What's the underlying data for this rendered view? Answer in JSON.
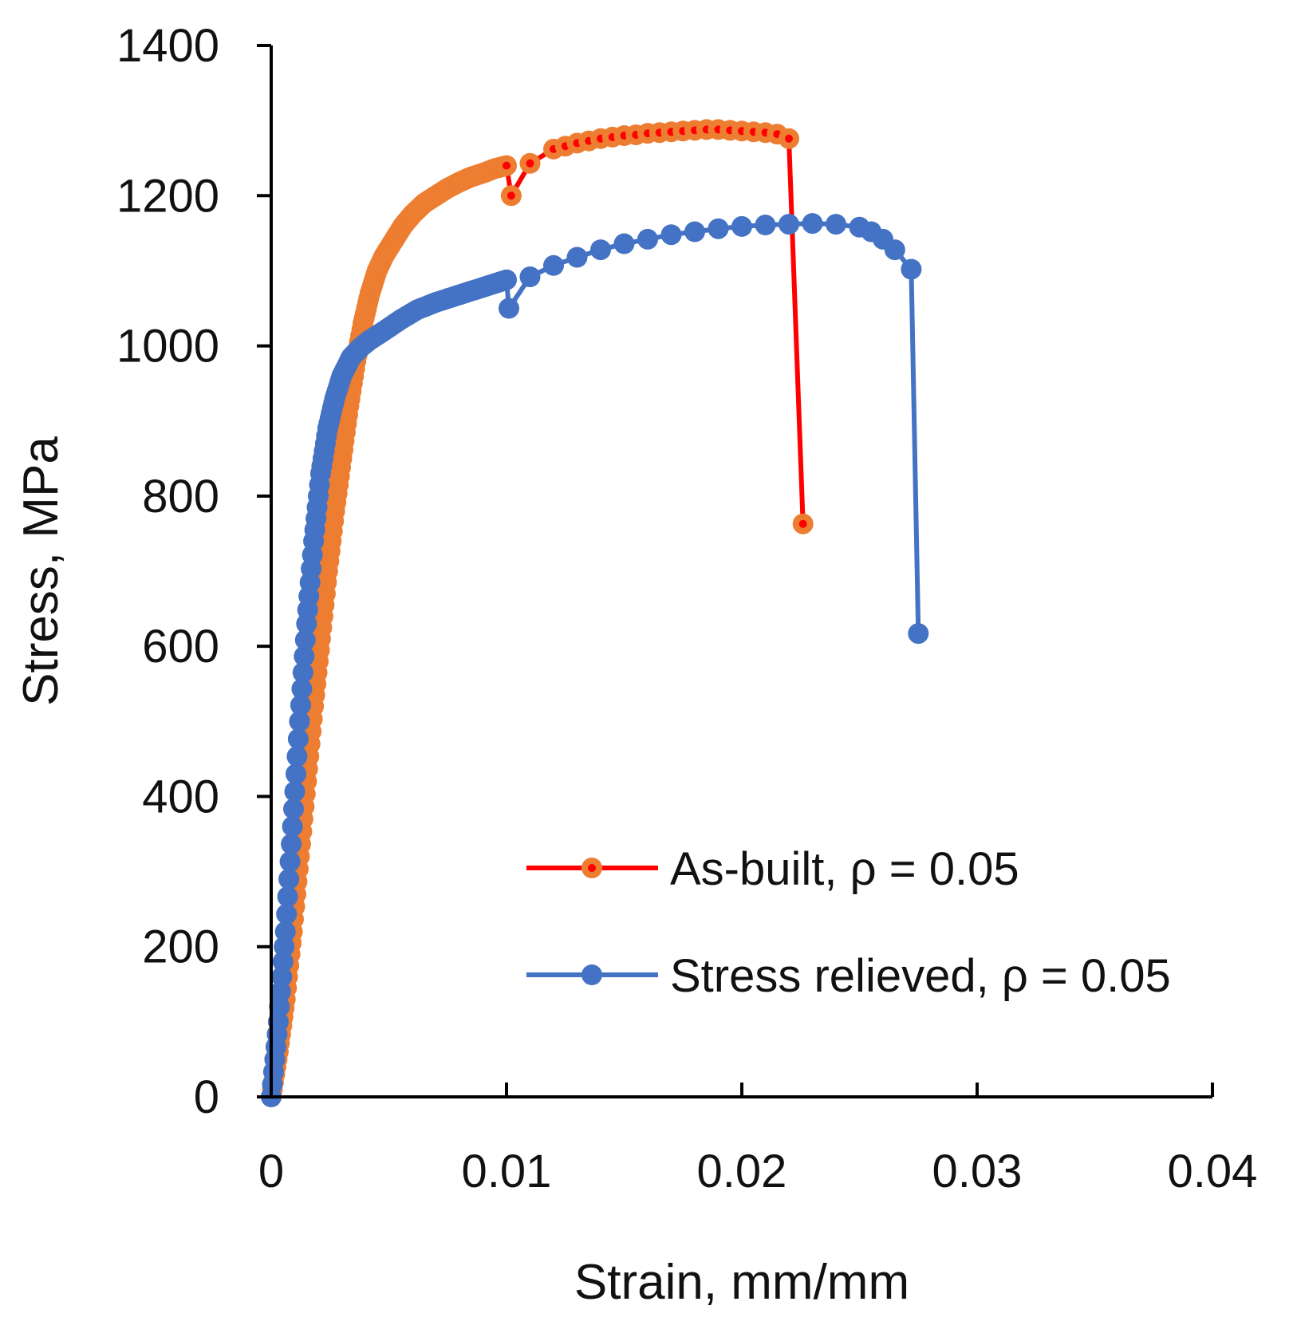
{
  "chart_data": {
    "type": "line",
    "title": "",
    "xlabel": "Strain, mm/mm",
    "ylabel": "Stress, MPa",
    "xlim": [
      0,
      0.04
    ],
    "ylim": [
      0,
      1400
    ],
    "x_ticks": [
      0,
      0.01,
      0.02,
      0.03,
      0.04
    ],
    "x_tick_labels": [
      "0",
      "0.01",
      "0.02",
      "0.03",
      "0.04"
    ],
    "y_ticks": [
      0,
      200,
      400,
      600,
      800,
      1000,
      1200,
      1400
    ],
    "y_tick_labels": [
      "0",
      "200",
      "400",
      "600",
      "800",
      "1000",
      "1200",
      "1400"
    ],
    "grid": false,
    "legend_position": "bottom-right",
    "series": [
      {
        "name": "As-built, ρ = 0.05",
        "line_color": "#ff0000",
        "marker_color": "#ed7d31",
        "dense_points": [
          [
            0.0,
            0
          ],
          [
            0.0003,
            60
          ],
          [
            0.0006,
            130
          ],
          [
            0.0009,
            220
          ],
          [
            0.0012,
            320
          ],
          [
            0.0015,
            420
          ],
          [
            0.0018,
            520
          ],
          [
            0.0021,
            610
          ],
          [
            0.0024,
            700
          ],
          [
            0.0027,
            780
          ],
          [
            0.003,
            850
          ],
          [
            0.0033,
            920
          ],
          [
            0.0036,
            980
          ],
          [
            0.0039,
            1030
          ],
          [
            0.0042,
            1070
          ],
          [
            0.0045,
            1100
          ],
          [
            0.0048,
            1120
          ],
          [
            0.0052,
            1140
          ],
          [
            0.0056,
            1160
          ],
          [
            0.006,
            1175
          ],
          [
            0.0065,
            1190
          ],
          [
            0.007,
            1200
          ],
          [
            0.0075,
            1210
          ],
          [
            0.008,
            1218
          ],
          [
            0.0085,
            1225
          ],
          [
            0.009,
            1230
          ],
          [
            0.0095,
            1236
          ],
          [
            0.01,
            1240
          ]
        ],
        "points": [
          [
            0.01,
            1240
          ],
          [
            0.0102,
            1200
          ],
          [
            0.011,
            1243
          ],
          [
            0.012,
            1262
          ],
          [
            0.0125,
            1266
          ],
          [
            0.013,
            1270
          ],
          [
            0.0135,
            1273
          ],
          [
            0.014,
            1276
          ],
          [
            0.0145,
            1278
          ],
          [
            0.015,
            1280
          ],
          [
            0.0155,
            1281
          ],
          [
            0.016,
            1283
          ],
          [
            0.0165,
            1284
          ],
          [
            0.017,
            1285
          ],
          [
            0.0175,
            1286
          ],
          [
            0.018,
            1287
          ],
          [
            0.0185,
            1288
          ],
          [
            0.019,
            1288
          ],
          [
            0.0195,
            1287
          ],
          [
            0.02,
            1286
          ],
          [
            0.0205,
            1285
          ],
          [
            0.021,
            1284
          ],
          [
            0.0215,
            1282
          ],
          [
            0.022,
            1276
          ],
          [
            0.0226,
            763
          ]
        ]
      },
      {
        "name": "Stress relieved, ρ = 0.05",
        "line_color": "#4472c4",
        "marker_color": "#4472c4",
        "dense_points": [
          [
            0.0,
            0
          ],
          [
            0.0003,
            100
          ],
          [
            0.0006,
            220
          ],
          [
            0.0009,
            360
          ],
          [
            0.0012,
            500
          ],
          [
            0.0015,
            630
          ],
          [
            0.0018,
            740
          ],
          [
            0.0021,
            830
          ],
          [
            0.0024,
            890
          ],
          [
            0.0027,
            930
          ],
          [
            0.003,
            960
          ],
          [
            0.0034,
            985
          ],
          [
            0.0038,
            998
          ],
          [
            0.0042,
            1008
          ],
          [
            0.0048,
            1020
          ],
          [
            0.0055,
            1035
          ],
          [
            0.0062,
            1048
          ],
          [
            0.007,
            1058
          ],
          [
            0.0078,
            1066
          ],
          [
            0.0085,
            1073
          ],
          [
            0.0092,
            1080
          ],
          [
            0.01,
            1088
          ]
        ],
        "points": [
          [
            0.01,
            1088
          ],
          [
            0.0101,
            1050
          ],
          [
            0.011,
            1092
          ],
          [
            0.012,
            1107
          ],
          [
            0.013,
            1118
          ],
          [
            0.014,
            1128
          ],
          [
            0.015,
            1136
          ],
          [
            0.016,
            1142
          ],
          [
            0.017,
            1148
          ],
          [
            0.018,
            1152
          ],
          [
            0.019,
            1156
          ],
          [
            0.02,
            1159
          ],
          [
            0.021,
            1161
          ],
          [
            0.022,
            1162
          ],
          [
            0.023,
            1163
          ],
          [
            0.024,
            1162
          ],
          [
            0.025,
            1158
          ],
          [
            0.0255,
            1152
          ],
          [
            0.026,
            1142
          ],
          [
            0.0265,
            1128
          ],
          [
            0.0272,
            1102
          ],
          [
            0.0275,
            617
          ]
        ]
      }
    ]
  }
}
